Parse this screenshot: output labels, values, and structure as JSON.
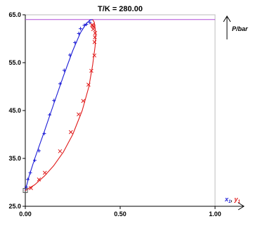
{
  "chart_data": {
    "type": "scatter",
    "title": "T/K = 280.00",
    "xlabel": {
      "x1": "x",
      "x1_sub": "1",
      "sep": ", ",
      "y1": "y",
      "y1_sub": "1"
    },
    "ylabel": "P/bar",
    "xlim": [
      0.0,
      1.0
    ],
    "ylim": [
      25.0,
      65.0
    ],
    "xticks": [
      "0.00",
      "0.50",
      "1.00"
    ],
    "yticks": [
      "25.0",
      "35.0",
      "45.0",
      "55.0",
      "65.0"
    ],
    "grid": false,
    "colors": {
      "liquid": "#1c1cd6",
      "vapor": "#e01a1a",
      "hline": "#b04fd8",
      "axis": "#000000",
      "pure_point": "#555555"
    },
    "reference_line_y": 64.0,
    "pure_point": {
      "x": 0.0,
      "y": 28.3
    },
    "series": [
      {
        "kind": "liquid-data",
        "marker": "+",
        "points": [
          [
            0.005,
            29.0
          ],
          [
            0.013,
            30.6
          ],
          [
            0.026,
            32.0
          ],
          [
            0.05,
            34.6
          ],
          [
            0.072,
            36.6
          ],
          [
            0.1,
            40.2
          ],
          [
            0.128,
            44.1
          ],
          [
            0.151,
            47.1
          ],
          [
            0.183,
            50.6
          ],
          [
            0.205,
            53.4
          ],
          [
            0.235,
            56.6
          ],
          [
            0.262,
            59.2
          ],
          [
            0.282,
            61.1
          ],
          [
            0.291,
            62.1
          ],
          [
            0.311,
            62.8
          ],
          [
            0.322,
            63.0
          ],
          [
            0.34,
            63.4
          ]
        ]
      },
      {
        "kind": "vapor-data",
        "marker": "x",
        "points": [
          [
            0.03,
            28.8
          ],
          [
            0.072,
            30.6
          ],
          [
            0.103,
            32.0
          ],
          [
            0.183,
            36.5
          ],
          [
            0.24,
            40.5
          ],
          [
            0.281,
            44.2
          ],
          [
            0.305,
            47.0
          ],
          [
            0.333,
            50.4
          ],
          [
            0.348,
            53.3
          ],
          [
            0.364,
            56.5
          ],
          [
            0.365,
            59.3
          ],
          [
            0.367,
            60.3
          ],
          [
            0.368,
            61.2
          ],
          [
            0.358,
            62.0
          ],
          [
            0.36,
            62.5
          ],
          [
            0.355,
            62.7
          ],
          [
            0.352,
            62.9
          ]
        ]
      },
      {
        "kind": "liquid-curve",
        "points": [
          [
            0.0,
            28.3
          ],
          [
            0.02,
            31.3
          ],
          [
            0.05,
            35.0
          ],
          [
            0.1,
            40.6
          ],
          [
            0.15,
            46.4
          ],
          [
            0.2,
            52.1
          ],
          [
            0.25,
            57.5
          ],
          [
            0.29,
            61.2
          ],
          [
            0.32,
            63.1
          ],
          [
            0.34,
            63.9
          ],
          [
            0.355,
            64.0
          ]
        ]
      },
      {
        "kind": "vapor-curve",
        "points": [
          [
            0.0,
            28.3
          ],
          [
            0.05,
            29.5
          ],
          [
            0.1,
            31.3
          ],
          [
            0.15,
            33.5
          ],
          [
            0.2,
            36.3
          ],
          [
            0.25,
            40.0
          ],
          [
            0.3,
            45.0
          ],
          [
            0.335,
            50.0
          ],
          [
            0.355,
            54.5
          ],
          [
            0.368,
            58.5
          ],
          [
            0.37,
            61.5
          ],
          [
            0.364,
            63.4
          ],
          [
            0.355,
            64.0
          ]
        ]
      }
    ]
  }
}
